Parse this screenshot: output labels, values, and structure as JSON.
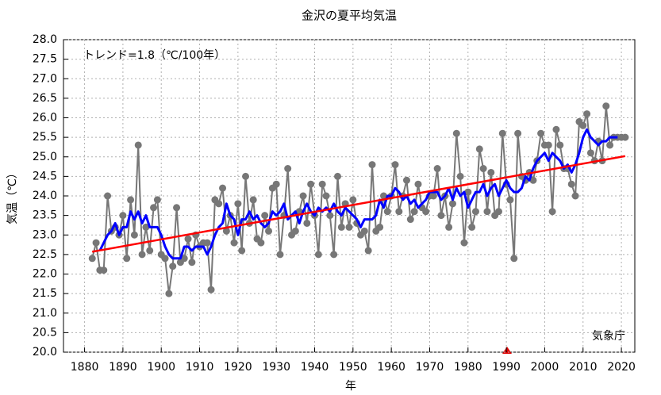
{
  "chart_data": {
    "type": "line",
    "title": "金沢の夏平均気温",
    "x_label": "年",
    "y_label": "気温（℃）",
    "annotations": [
      "トレンド=1.8（℃/100年）",
      "気象庁"
    ],
    "x": [
      1882,
      1883,
      1884,
      1885,
      1886,
      1887,
      1888,
      1889,
      1890,
      1891,
      1892,
      1893,
      1894,
      1895,
      1896,
      1897,
      1898,
      1899,
      1900,
      1901,
      1902,
      1903,
      1904,
      1905,
      1906,
      1907,
      1908,
      1909,
      1910,
      1911,
      1912,
      1913,
      1914,
      1915,
      1916,
      1917,
      1918,
      1919,
      1920,
      1921,
      1922,
      1923,
      1924,
      1925,
      1926,
      1927,
      1928,
      1929,
      1930,
      1931,
      1932,
      1933,
      1934,
      1935,
      1936,
      1937,
      1938,
      1939,
      1940,
      1941,
      1942,
      1943,
      1944,
      1945,
      1946,
      1947,
      1948,
      1949,
      1950,
      1951,
      1952,
      1953,
      1954,
      1955,
      1956,
      1957,
      1958,
      1959,
      1960,
      1961,
      1962,
      1963,
      1964,
      1965,
      1966,
      1967,
      1968,
      1969,
      1970,
      1971,
      1972,
      1973,
      1974,
      1975,
      1976,
      1977,
      1978,
      1979,
      1980,
      1981,
      1982,
      1983,
      1984,
      1985,
      1986,
      1987,
      1988,
      1989,
      1990,
      1991,
      1992,
      1993,
      1994,
      1995,
      1996,
      1997,
      1998,
      1999,
      2000,
      2001,
      2002,
      2003,
      2004,
      2005,
      2006,
      2007,
      2008,
      2009,
      2010,
      2011,
      2012,
      2013,
      2014,
      2015,
      2016,
      2017,
      2018,
      2019,
      2020,
      2021
    ],
    "series": [
      {
        "color": "#777777",
        "values": [
          22.4,
          22.8,
          22.1,
          22.1,
          24.0,
          23.1,
          23.2,
          23.0,
          23.5,
          22.4,
          23.9,
          23.0,
          25.3,
          22.5,
          23.2,
          22.6,
          23.7,
          23.9,
          22.5,
          22.4,
          21.5,
          22.2,
          23.7,
          22.3,
          22.4,
          22.9,
          22.3,
          23.0,
          22.7,
          22.8,
          22.8,
          21.6,
          23.9,
          23.8,
          24.2,
          23.1,
          23.5,
          22.8,
          23.8,
          22.6,
          24.5,
          23.3,
          23.9,
          22.9,
          22.8,
          23.5,
          23.1,
          24.2,
          24.3,
          22.5,
          23.5,
          24.7,
          23.0,
          23.1,
          23.6,
          24.0,
          23.3,
          24.3,
          23.5,
          22.5,
          24.3,
          24.0,
          23.5,
          22.5,
          24.5,
          23.2,
          23.8,
          23.2,
          23.9,
          23.3,
          23.0,
          23.1,
          22.6,
          24.8,
          23.1,
          23.2,
          24.0,
          23.6,
          24.0,
          24.8,
          23.6,
          24.0,
          24.4,
          23.4,
          23.6,
          24.3,
          23.7,
          23.6,
          24.0,
          24.0,
          24.7,
          23.5,
          24.0,
          23.2,
          23.8,
          25.6,
          24.5,
          22.8,
          24.1,
          23.2,
          23.6,
          25.2,
          24.7,
          23.6,
          24.6,
          23.5,
          23.6,
          25.6,
          24.3,
          23.9,
          22.4,
          25.6,
          24.5,
          24.4,
          24.6,
          24.4,
          24.9,
          25.6,
          25.3,
          25.3,
          23.6,
          25.7,
          25.3,
          24.7,
          24.7,
          24.3,
          24.0,
          25.9,
          25.8,
          26.1,
          25.1,
          24.9,
          25.4,
          24.9,
          26.3,
          25.3,
          25.5,
          25.5,
          25.5,
          25.5
        ]
      },
      {
        "color": "#0000ff",
        "values": [
          null,
          null,
          22.6,
          22.8,
          23.0,
          23.1,
          23.3,
          23.0,
          23.2,
          23.2,
          23.6,
          23.4,
          23.6,
          23.3,
          23.5,
          23.2,
          23.2,
          23.2,
          23.0,
          22.7,
          22.5,
          22.4,
          22.4,
          22.4,
          22.7,
          22.7,
          22.6,
          22.7,
          22.7,
          22.7,
          22.5,
          22.7,
          23.0,
          23.2,
          23.3,
          23.8,
          23.5,
          23.4,
          23.0,
          23.4,
          23.4,
          23.6,
          23.4,
          23.5,
          23.3,
          23.2,
          23.3,
          23.6,
          23.5,
          23.6,
          23.8,
          23.4,
          23.5,
          23.6,
          23.3,
          23.6,
          23.8,
          23.6,
          23.5,
          23.7,
          23.6,
          23.7,
          23.6,
          23.8,
          23.6,
          23.5,
          23.7,
          23.6,
          23.5,
          23.4,
          23.2,
          23.4,
          23.4,
          23.4,
          23.5,
          23.9,
          23.7,
          24.0,
          24.0,
          24.2,
          24.1,
          23.9,
          24.0,
          23.8,
          23.9,
          23.7,
          23.8,
          23.9,
          24.1,
          24.1,
          24.1,
          23.9,
          24.0,
          24.2,
          23.9,
          24.2,
          24.0,
          24.1,
          23.7,
          23.9,
          24.1,
          24.1,
          24.3,
          24.0,
          24.2,
          24.3,
          24.0,
          24.2,
          24.4,
          24.2,
          24.1,
          24.1,
          24.2,
          24.5,
          24.4,
          24.7,
          24.9,
          25.0,
          25.1,
          24.9,
          25.1,
          25.0,
          24.9,
          24.7,
          24.8,
          24.6,
          24.8,
          25.1,
          25.5,
          25.7,
          25.5,
          25.4,
          25.3,
          25.4,
          25.4,
          25.5,
          25.5,
          25.5,
          null,
          null
        ]
      }
    ],
    "trend": {
      "color": "#ff0000",
      "x": [
        1882,
        2021
      ],
      "values": [
        22.57,
        25.02
      ]
    },
    "xlim": [
      1874.5,
      2023.5
    ],
    "ylim": [
      20.0,
      28.0
    ],
    "xticks": [
      1880,
      1890,
      1900,
      1910,
      1920,
      1930,
      1940,
      1950,
      1960,
      1970,
      1980,
      1990,
      2000,
      2010,
      2020
    ],
    "yticks": [
      {
        "value": 20,
        "label": "20.0"
      },
      {
        "value": 20.5,
        "label": "20.5"
      },
      {
        "value": 21,
        "label": "21.0"
      },
      {
        "value": 21.5,
        "label": "21.5"
      },
      {
        "value": 22,
        "label": "22.0"
      },
      {
        "value": 22.5,
        "label": "22.5"
      },
      {
        "value": 23,
        "label": "23.0"
      },
      {
        "value": 23.5,
        "label": "23.5"
      },
      {
        "value": 24,
        "label": "24.0"
      },
      {
        "value": 24.5,
        "label": "24.5"
      },
      {
        "value": 25,
        "label": "25.0"
      },
      {
        "value": 25.5,
        "label": "25.5"
      },
      {
        "value": 26,
        "label": "26.0"
      },
      {
        "value": 26.5,
        "label": "26.5"
      },
      {
        "value": 27,
        "label": "27.0"
      },
      {
        "value": 27.5,
        "label": "27.5"
      },
      {
        "value": 28,
        "label": "28.0"
      }
    ],
    "grid": true
  }
}
